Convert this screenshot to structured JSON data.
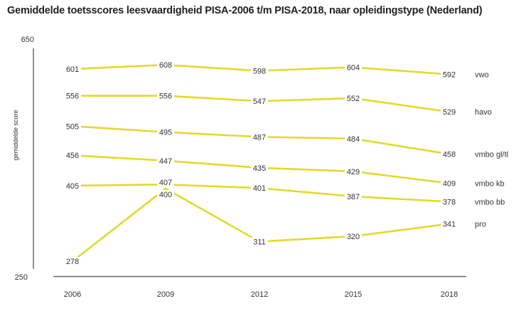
{
  "chart_data": {
    "type": "line",
    "title": "Gemiddelde toetsscores leesvaardigheid PISA-2006 t/m PISA-2018, naar opleidingstype (Nederland)",
    "xlabel": "",
    "ylabel": "gemiddelde score",
    "ylim": [
      250,
      650
    ],
    "yticks": [
      "650",
      "250"
    ],
    "categories": [
      "2006",
      "2009",
      "2012",
      "2015",
      "2018"
    ],
    "grid": false,
    "legend": "inline labels at right end of lines",
    "line_color": "#e3d92b",
    "series": [
      {
        "name": "vwo",
        "values": [
          601,
          608,
          598,
          604,
          592
        ]
      },
      {
        "name": "havo",
        "values": [
          556,
          556,
          547,
          552,
          529
        ]
      },
      {
        "name": "vmbo gl/tl",
        "values": [
          505,
          495,
          487,
          484,
          458
        ]
      },
      {
        "name": "vmbo kb",
        "values": [
          456,
          447,
          435,
          429,
          409
        ]
      },
      {
        "name": "vmbo bb",
        "values": [
          405,
          407,
          401,
          387,
          378
        ]
      },
      {
        "name": "pro",
        "values": [
          278,
          400,
          311,
          320,
          341
        ]
      }
    ]
  }
}
